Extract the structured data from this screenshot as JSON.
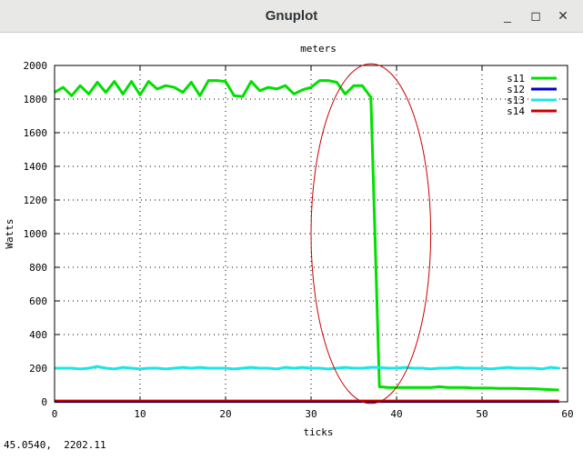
{
  "window": {
    "title": "Gnuplot",
    "buttons": {
      "minimize": "_",
      "maximize": "◻",
      "close": "✕"
    }
  },
  "status_text": "45.0540,  2202.11",
  "chart_data": {
    "type": "line",
    "title": "meters",
    "xlabel": "ticks",
    "ylabel": "Watts",
    "xlim": [
      0,
      60
    ],
    "ylim": [
      0,
      2000
    ],
    "xticks": [
      0,
      10,
      20,
      30,
      40,
      50,
      60
    ],
    "yticks": [
      0,
      200,
      400,
      600,
      800,
      1000,
      1200,
      1400,
      1600,
      1800,
      2000
    ],
    "grid": true,
    "legend_position": "top-right",
    "series": [
      {
        "name": "s11",
        "color": "#00e000",
        "x": [
          0,
          1,
          2,
          3,
          4,
          5,
          6,
          7,
          8,
          9,
          10,
          11,
          12,
          13,
          14,
          15,
          16,
          17,
          18,
          19,
          20,
          21,
          22,
          23,
          24,
          25,
          26,
          27,
          28,
          29,
          30,
          31,
          32,
          33,
          34,
          35,
          36,
          37,
          38,
          39,
          40,
          41,
          42,
          43,
          44,
          45,
          46,
          47,
          48,
          49,
          50,
          51,
          52,
          53,
          54,
          55,
          56,
          57,
          58,
          59
        ],
        "y": [
          1840,
          1870,
          1820,
          1880,
          1830,
          1900,
          1840,
          1905,
          1830,
          1905,
          1825,
          1905,
          1860,
          1880,
          1870,
          1840,
          1900,
          1820,
          1910,
          1910,
          1905,
          1820,
          1815,
          1905,
          1850,
          1870,
          1860,
          1880,
          1830,
          1855,
          1870,
          1910,
          1910,
          1900,
          1830,
          1880,
          1880,
          1810,
          90,
          85,
          85,
          85,
          85,
          85,
          85,
          90,
          85,
          85,
          85,
          82,
          82,
          82,
          80,
          80,
          80,
          78,
          78,
          75,
          72,
          70
        ]
      },
      {
        "name": "s12",
        "color": "#0000c8",
        "x": [
          0,
          59
        ],
        "y": [
          2,
          2
        ]
      },
      {
        "name": "s13",
        "color": "#19e6e6",
        "x": [
          0,
          1,
          2,
          3,
          4,
          5,
          6,
          7,
          8,
          9,
          10,
          11,
          12,
          13,
          14,
          15,
          16,
          17,
          18,
          19,
          20,
          21,
          22,
          23,
          24,
          25,
          26,
          27,
          28,
          29,
          30,
          31,
          32,
          33,
          34,
          35,
          36,
          37,
          38,
          39,
          40,
          41,
          42,
          43,
          44,
          45,
          46,
          47,
          48,
          49,
          50,
          51,
          52,
          53,
          54,
          55,
          56,
          57,
          58,
          59
        ],
        "y": [
          200,
          200,
          200,
          195,
          200,
          210,
          200,
          195,
          205,
          200,
          195,
          200,
          200,
          195,
          200,
          205,
          200,
          205,
          200,
          200,
          200,
          195,
          200,
          205,
          200,
          200,
          195,
          205,
          200,
          205,
          200,
          200,
          195,
          200,
          205,
          200,
          200,
          205,
          205,
          200,
          200,
          205,
          200,
          200,
          195,
          200,
          200,
          205,
          200,
          200,
          200,
          195,
          200,
          205,
          200,
          200,
          200,
          195,
          205,
          200
        ]
      },
      {
        "name": "s14",
        "color": "#cc0000",
        "x": [
          0,
          59
        ],
        "y": [
          5,
          5
        ]
      }
    ],
    "annotations": [
      {
        "type": "ellipse",
        "color": "#cc0000",
        "cx": 37,
        "cy": 1000,
        "rx": 7,
        "ry": 1010
      }
    ]
  }
}
